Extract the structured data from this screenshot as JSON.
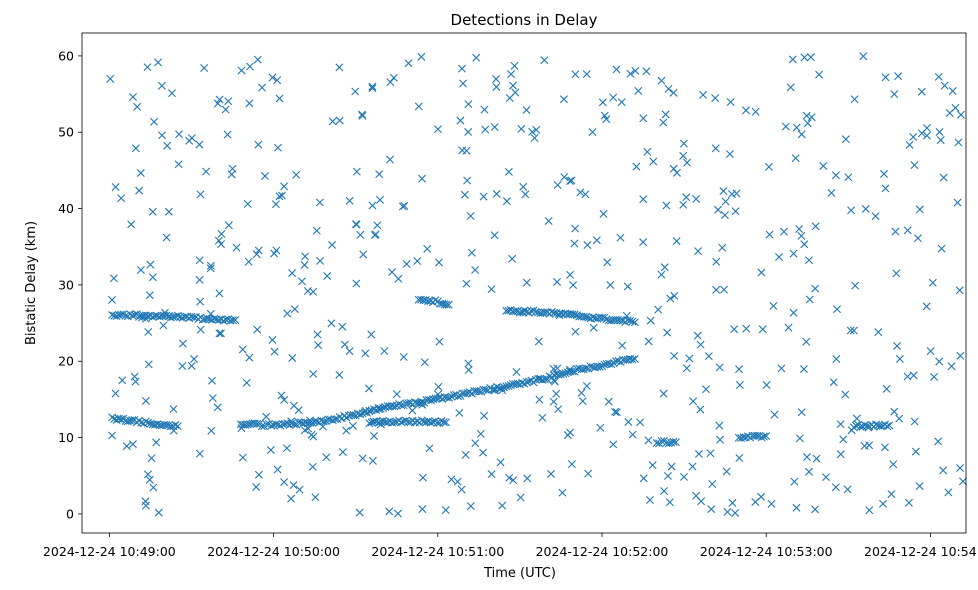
{
  "chart_data": {
    "type": "scatter",
    "title": "Detections in Delay",
    "xlabel": "Time (UTC)",
    "ylabel": "Bistatic Delay (km)",
    "x_range": [
      "2024-12-24 10:48:50",
      "2024-12-24 10:54:13"
    ],
    "ylim": [
      -2.5,
      63
    ],
    "x_ticks": [
      "2024-12-24 10:49:00",
      "2024-12-24 10:50:00",
      "2024-12-24 10:51:00",
      "2024-12-24 10:52:00",
      "2024-12-24 10:53:00",
      "2024-12-24 10:54:00"
    ],
    "y_ticks": [
      0,
      10,
      20,
      30,
      40,
      50,
      60
    ],
    "grid": false,
    "marker": "x",
    "color": "#1f77b4",
    "tracks": [
      {
        "time": [
          "2024-12-24 10:49:01",
          "2024-12-24 10:49:10",
          "2024-12-24 10:49:20",
          "2024-12-24 10:49:30",
          "2024-12-24 10:49:40",
          "2024-12-24 10:49:46"
        ],
        "delay": [
          26.0,
          26.0,
          25.9,
          25.7,
          25.5,
          25.4
        ]
      },
      {
        "time": [
          "2024-12-24 10:49:01",
          "2024-12-24 10:49:10",
          "2024-12-24 10:49:20",
          "2024-12-24 10:49:25"
        ],
        "delay": [
          12.5,
          12.1,
          11.7,
          11.5
        ]
      },
      {
        "time": [
          "2024-12-24 10:49:48",
          "2024-12-24 10:50:00",
          "2024-12-24 10:50:10",
          "2024-12-24 10:50:20",
          "2024-12-24 10:50:30",
          "2024-12-24 10:50:35"
        ],
        "delay": [
          11.8,
          11.6,
          11.9,
          12.3,
          13.0,
          13.5
        ]
      },
      {
        "time": [
          "2024-12-24 10:50:35",
          "2024-12-24 10:50:45",
          "2024-12-24 10:51:00",
          "2024-12-24 10:51:10",
          "2024-12-24 10:51:20",
          "2024-12-24 10:51:30",
          "2024-12-24 10:51:40",
          "2024-12-24 10:51:50",
          "2024-12-24 10:52:00",
          "2024-12-24 10:52:12"
        ],
        "delay": [
          13.5,
          14.2,
          15.0,
          15.7,
          16.4,
          17.0,
          17.8,
          18.8,
          19.5,
          20.3
        ]
      },
      {
        "time": [
          "2024-12-24 10:50:35",
          "2024-12-24 10:50:45",
          "2024-12-24 10:50:55",
          "2024-12-24 10:51:03"
        ],
        "delay": [
          12.0,
          12.1,
          12.1,
          12.0
        ]
      },
      {
        "time": [
          "2024-12-24 10:50:53",
          "2024-12-24 10:51:00",
          "2024-12-24 10:51:04"
        ],
        "delay": [
          28.2,
          27.8,
          27.4
        ]
      },
      {
        "time": [
          "2024-12-24 10:51:25",
          "2024-12-24 10:51:35",
          "2024-12-24 10:51:45",
          "2024-12-24 10:51:55",
          "2024-12-24 10:52:05",
          "2024-12-24 10:52:12"
        ],
        "delay": [
          26.6,
          26.5,
          26.2,
          25.8,
          25.4,
          25.1
        ]
      },
      {
        "time": [
          "2024-12-24 10:52:20",
          "2024-12-24 10:52:27"
        ],
        "delay": [
          9.4,
          9.4
        ]
      },
      {
        "time": [
          "2024-12-24 10:52:50",
          "2024-12-24 10:53:00"
        ],
        "delay": [
          10.0,
          10.2
        ]
      },
      {
        "time": [
          "2024-12-24 10:53:32",
          "2024-12-24 10:53:45"
        ],
        "delay": [
          11.5,
          11.6
        ]
      }
    ],
    "noise_points": {
      "count": 580,
      "delay_range": [
        0,
        60
      ],
      "time_range": [
        "2024-12-24 10:49:00",
        "2024-12-24 10:54:12"
      ]
    }
  }
}
